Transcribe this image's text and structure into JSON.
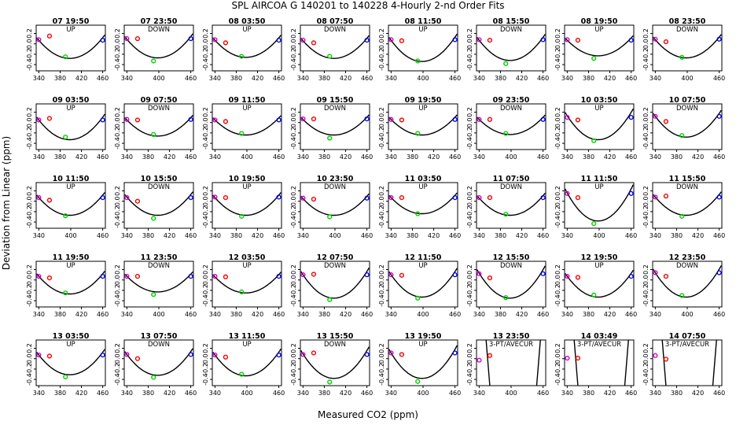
{
  "chart_data": {
    "type": "scatter",
    "title": "SPL    AIRCOA G    140201 to 140228    4-Hourly 2-nd Order Fits",
    "xlabel": "Measured CO2 (ppm)",
    "ylabel": "Deviation from Linear (ppm)",
    "xlim": [
      335,
      465
    ],
    "ylim": [
      -0.52,
      0.36
    ],
    "xticks": [
      340,
      380,
      420,
      460
    ],
    "xticks_short": [
      340,
      400,
      460
    ],
    "yticks": [
      0.2,
      0,
      -0.2,
      -0.4
    ],
    "ytick_labels": [
      "0.2",
      "0.0",
      "-0.2",
      "-0.4"
    ],
    "colors": {
      "standard1": "#cc00cc",
      "standard2": "#ee0000",
      "standard3": "#00cc00",
      "standard4": "#0000ee",
      "fit": "#000000"
    },
    "panels": [
      {
        "title": "07 19:50",
        "label": "UP",
        "points": [
          0.08,
          0.15,
          -0.25,
          0.07
        ],
        "fit": [
          0.07,
          -0.28
        ]
      },
      {
        "title": "07 23:50",
        "label": "DOWN",
        "points": [
          0.1,
          0.1,
          -0.33,
          0.1
        ],
        "fit": [
          0.09,
          -0.27
        ]
      },
      {
        "title": "08 03:50",
        "label": "UP",
        "points": [
          0.08,
          0.02,
          -0.24,
          0.07
        ],
        "fit": [
          0.07,
          -0.26
        ]
      },
      {
        "title": "08 07:50",
        "label": "DOWN",
        "points": [
          0.07,
          0.02,
          -0.24,
          0.07
        ],
        "fit": [
          0.06,
          -0.28
        ]
      },
      {
        "title": "08 11:50",
        "label": "UP",
        "points": [
          0.08,
          0.06,
          -0.33,
          0.08
        ],
        "fit": [
          0.07,
          -0.34
        ]
      },
      {
        "title": "08 15:50",
        "label": "DOWN",
        "points": [
          0.08,
          0.07,
          -0.38,
          0.08
        ],
        "fit": [
          0.07,
          -0.32
        ]
      },
      {
        "title": "08 19:50",
        "label": "UP",
        "points": [
          0.08,
          0.07,
          -0.28,
          0.07
        ],
        "fit": [
          0.07,
          -0.23
        ]
      },
      {
        "title": "08 23:50",
        "label": "DOWN",
        "points": [
          0.09,
          0.04,
          -0.26,
          0.09
        ],
        "fit": [
          0.08,
          -0.27
        ]
      },
      {
        "title": "09 03:50",
        "label": "UP",
        "points": [
          0.05,
          0.08,
          -0.28,
          0.05
        ],
        "fit": [
          0.05,
          -0.33
        ]
      },
      {
        "title": "09 07:50",
        "label": "DOWN",
        "points": [
          0.06,
          0.05,
          -0.23,
          0.06
        ],
        "fit": [
          0.05,
          -0.26
        ]
      },
      {
        "title": "09 11:50",
        "label": "UP",
        "points": [
          0.05,
          0.02,
          -0.21,
          0.05
        ],
        "fit": [
          0.05,
          -0.24
        ]
      },
      {
        "title": "09 15:50",
        "label": "DOWN",
        "points": [
          0.07,
          0.07,
          -0.3,
          0.07
        ],
        "fit": [
          0.06,
          -0.24
        ]
      },
      {
        "title": "09 19:50",
        "label": "UP",
        "points": [
          0.06,
          0.05,
          -0.21,
          0.06
        ],
        "fit": [
          0.06,
          -0.24
        ]
      },
      {
        "title": "09 23:50",
        "label": "DOWN",
        "points": [
          0.06,
          0.06,
          -0.21,
          0.06
        ],
        "fit": [
          0.06,
          -0.23
        ]
      },
      {
        "title": "10 03:50",
        "label": "UP",
        "points": [
          0.1,
          0.05,
          -0.35,
          0.1
        ],
        "fit": [
          0.13,
          -0.33
        ]
      },
      {
        "title": "10 07:50",
        "label": "DOWN",
        "points": [
          0.12,
          0.02,
          -0.25,
          0.12
        ],
        "fit": [
          0.12,
          -0.28
        ]
      },
      {
        "title": "10 11:50",
        "label": "UP",
        "points": [
          0.07,
          0.02,
          -0.28,
          0.07
        ],
        "fit": [
          0.07,
          -0.27
        ]
      },
      {
        "title": "10 15:50",
        "label": "DOWN",
        "points": [
          0.07,
          0.0,
          -0.33,
          0.07
        ],
        "fit": [
          0.08,
          -0.27
        ]
      },
      {
        "title": "10 19:50",
        "label": "UP",
        "points": [
          0.08,
          0.07,
          -0.29,
          0.08
        ],
        "fit": [
          0.07,
          -0.27
        ]
      },
      {
        "title": "10 23:50",
        "label": "DOWN",
        "points": [
          0.06,
          0.04,
          -0.3,
          0.06
        ],
        "fit": [
          0.05,
          -0.27
        ]
      },
      {
        "title": "11 03:50",
        "label": "UP",
        "points": [
          0.07,
          0.07,
          -0.24,
          0.07
        ],
        "fit": [
          0.07,
          -0.24
        ]
      },
      {
        "title": "11 07:50",
        "label": "DOWN",
        "points": [
          0.07,
          0.07,
          -0.25,
          0.07
        ],
        "fit": [
          0.06,
          -0.27
        ]
      },
      {
        "title": "11 11:50",
        "label": "UP",
        "points": [
          0.15,
          0.07,
          -0.43,
          0.15
        ],
        "fit": [
          0.16,
          -0.38
        ]
      },
      {
        "title": "11 15:50",
        "label": "DOWN",
        "points": [
          0.08,
          0.1,
          -0.29,
          0.08
        ],
        "fit": [
          0.08,
          -0.27
        ]
      },
      {
        "title": "11 19:50",
        "label": "UP",
        "points": [
          0.07,
          0.04,
          -0.25,
          0.07
        ],
        "fit": [
          0.07,
          -0.27
        ]
      },
      {
        "title": "11 23:50",
        "label": "DOWN",
        "points": [
          0.07,
          0.07,
          -0.28,
          0.07
        ],
        "fit": [
          0.07,
          -0.23
        ]
      },
      {
        "title": "12 03:50",
        "label": "UP",
        "points": [
          0.07,
          0.06,
          -0.23,
          0.07
        ],
        "fit": [
          0.06,
          -0.25
        ]
      },
      {
        "title": "12 07:50",
        "label": "DOWN",
        "points": [
          0.1,
          0.11,
          -0.38,
          0.1
        ],
        "fit": [
          0.1,
          -0.35
        ]
      },
      {
        "title": "12 11:50",
        "label": "UP",
        "points": [
          0.1,
          0.09,
          -0.35,
          0.1
        ],
        "fit": [
          0.1,
          -0.33
        ]
      },
      {
        "title": "12 15:50",
        "label": "DOWN",
        "points": [
          0.12,
          0.04,
          -0.34,
          0.12
        ],
        "fit": [
          0.13,
          -0.35
        ]
      },
      {
        "title": "12 19:50",
        "label": "UP",
        "points": [
          0.07,
          0.05,
          -0.29,
          0.07
        ],
        "fit": [
          0.07,
          -0.33
        ]
      },
      {
        "title": "12 23:50",
        "label": "DOWN",
        "points": [
          0.14,
          0.07,
          -0.3,
          0.14
        ],
        "fit": [
          0.14,
          -0.33
        ]
      },
      {
        "title": "13 03:50",
        "label": "UP",
        "points": [
          0.07,
          0.05,
          -0.35,
          0.07
        ],
        "fit": [
          0.07,
          -0.31
        ]
      },
      {
        "title": "13 07:50",
        "label": "DOWN",
        "points": [
          0.08,
          0.0,
          -0.36,
          0.08
        ],
        "fit": [
          0.08,
          -0.32
        ]
      },
      {
        "title": "13 11:50",
        "label": "UP",
        "points": [
          0.07,
          0.03,
          -0.3,
          0.07
        ],
        "fit": [
          0.07,
          -0.33
        ]
      },
      {
        "title": "13 15:50",
        "label": "DOWN",
        "points": [
          0.08,
          0.11,
          -0.45,
          0.08
        ],
        "fit": [
          0.09,
          -0.38
        ]
      },
      {
        "title": "13 19:50",
        "label": "UP",
        "points": [
          0.11,
          0.08,
          -0.44,
          0.11
        ],
        "fit": [
          0.11,
          -0.38
        ]
      },
      {
        "title": "13 23:50",
        "label": "3-PT/AVECUR",
        "points": [
          -0.03,
          0.06,
          null,
          null
        ],
        "fit": [
          0,
          0
        ],
        "steep": true
      },
      {
        "title": "14 03:49",
        "label": "3-PT/AVECUR",
        "points": [
          0.01,
          0.01,
          null,
          null
        ],
        "fit": [
          0,
          0
        ],
        "steep": true
      },
      {
        "title": "14 07:50",
        "label": "3-PT/AVECUR",
        "points": [
          0.06,
          -0.01,
          null,
          null
        ],
        "fit": [
          0,
          0
        ],
        "steep": true
      }
    ]
  }
}
